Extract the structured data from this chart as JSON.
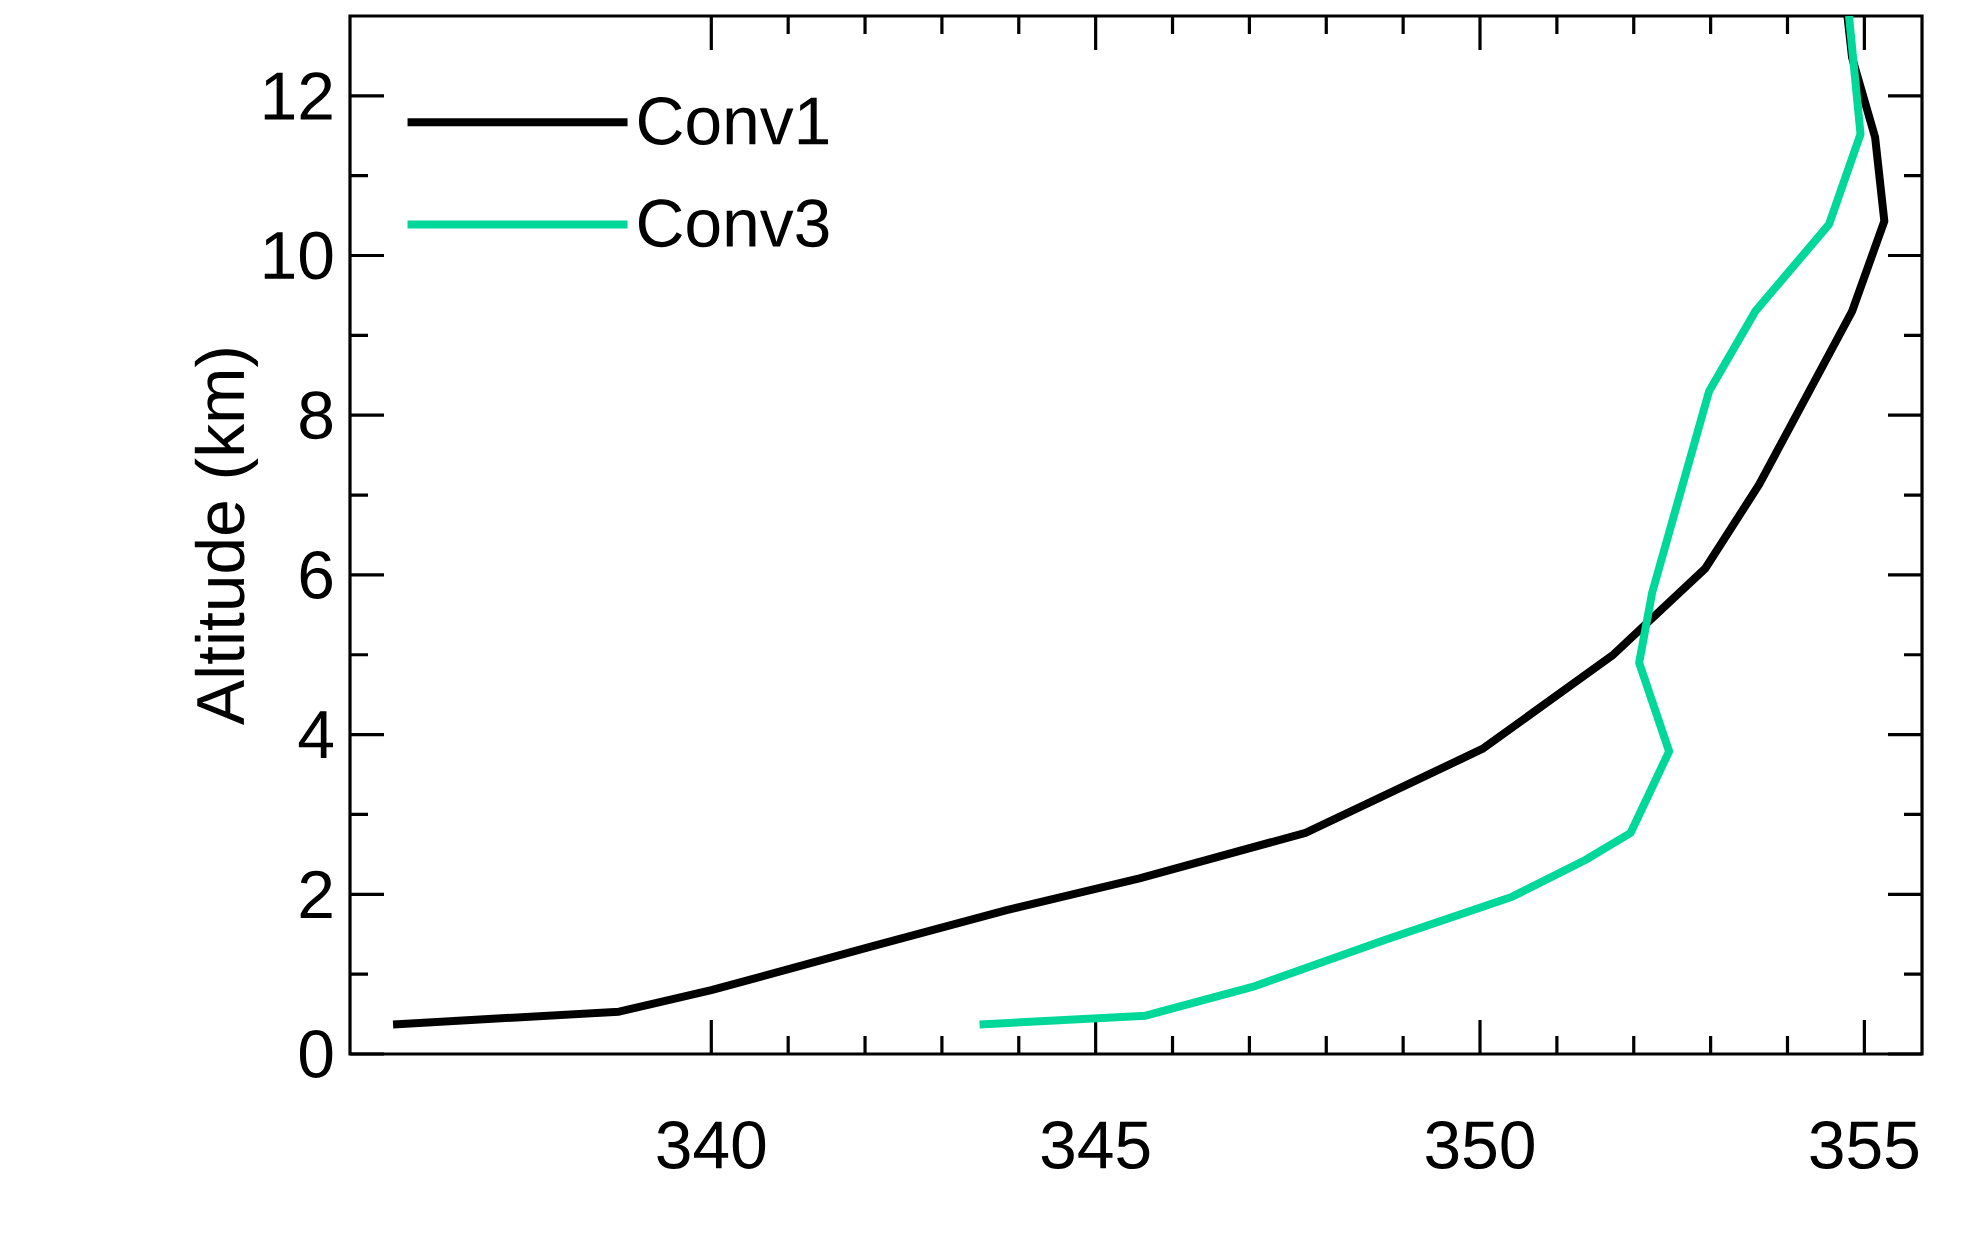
{
  "chart_data": {
    "type": "line",
    "ylabel": "Altitude (km)",
    "xlim": [
      335.3,
      355.75
    ],
    "ylim": [
      0,
      13
    ],
    "xticks": [
      340,
      345,
      350,
      355
    ],
    "yticks": [
      0,
      2,
      4,
      6,
      8,
      10,
      12
    ],
    "grid": false,
    "legend": "top left",
    "line_style": "solid",
    "series": [
      {
        "name": "Conv1",
        "color": "#000000",
        "x": [
          335.86,
          338.8,
          340.0,
          342.1,
          343.83,
          345.57,
          347.73,
          350.03,
          351.72,
          352.93,
          353.63,
          354.84,
          355.26,
          355.14,
          354.84,
          354.78
        ],
        "values": [
          0.37,
          0.53,
          0.8,
          1.35,
          1.8,
          2.2,
          2.77,
          3.82,
          4.99,
          6.08,
          7.13,
          9.3,
          10.43,
          11.48,
          12.48,
          13.0
        ]
      },
      {
        "name": "Conv3",
        "color": "#00d89a",
        "x": [
          343.49,
          345.65,
          347.04,
          348.77,
          350.42,
          351.37,
          351.96,
          352.46,
          352.07,
          352.24,
          352.98,
          353.58,
          354.54,
          354.95,
          354.8
        ],
        "values": [
          0.37,
          0.48,
          0.84,
          1.43,
          1.97,
          2.43,
          2.77,
          3.79,
          4.9,
          5.78,
          8.3,
          9.3,
          10.39,
          11.52,
          13.0
        ]
      }
    ]
  }
}
